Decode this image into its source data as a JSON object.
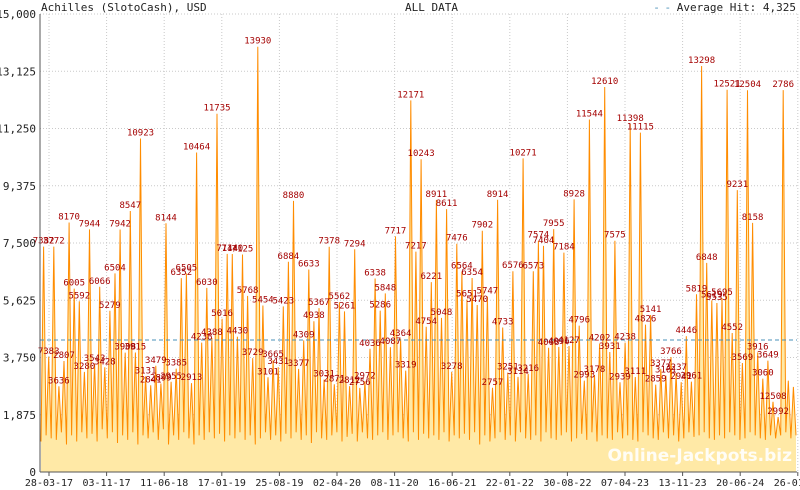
{
  "header": {
    "title": "Achilles (SlotoCash), USD",
    "range": "ALL DATA",
    "avg_label": "Average Hit: 4,325"
  },
  "watermark": "Online-Jackpots.biz",
  "colors": {
    "fill": "#ffe9a6",
    "line": "#ff8c00",
    "peak_label": "#a40000",
    "avg_line": "#4a90b8",
    "grid": "#c9c9c9"
  },
  "chart_data": {
    "type": "area",
    "title": "Achilles (SlotoCash), USD",
    "xlabel": "",
    "ylabel": "",
    "ylim": [
      0,
      15000
    ],
    "y_ticks": [
      "0",
      "1,875",
      "3,750",
      "5,625",
      "7,500",
      "9,375",
      "11,250",
      "13,125",
      "15,000"
    ],
    "x_ticks": [
      "28-03-17",
      "03-11-17",
      "11-06-18",
      "17-01-19",
      "25-08-19",
      "02-04-20",
      "08-11-20",
      "16-06-21",
      "22-01-22",
      "30-08-22",
      "07-04-23",
      "13-11-23",
      "20-06-24",
      "26-01-25"
    ],
    "grid": true,
    "average_hit": 4325,
    "series": [
      {
        "values": [
          1000,
          7382,
          1200,
          3772,
          1100,
          7383,
          1050,
          2807,
          1300,
          3636,
          900,
          8170,
          1200,
          6005,
          1000,
          5592,
          1300,
          3280,
          1100,
          7944,
          1250,
          3543,
          1000,
          6066,
          1400,
          3428,
          1100,
          5279,
          1300,
          6504,
          950,
          7942,
          1200,
          3908,
          1050,
          8547,
          1300,
          3915,
          900,
          10923,
          1200,
          3131,
          1100,
          2841,
          1300,
          3479,
          1050,
          2899,
          1400,
          8144,
          900,
          2955,
          1200,
          3385,
          1050,
          6352,
          1300,
          6505,
          1100,
          2913,
          900,
          10464,
          1200,
          4238,
          1050,
          6030,
          1300,
          4388,
          1100,
          11735,
          1250,
          5016,
          1000,
          7144,
          1200,
          7140,
          1100,
          4430,
          1300,
          7125,
          1050,
          5768,
          1200,
          3729,
          900,
          13930,
          1100,
          5454,
          1300,
          3101,
          1050,
          3665,
          1200,
          3431,
          1000,
          5423,
          1250,
          6884,
          1100,
          8880,
          1300,
          3377,
          1050,
          4309,
          1200,
          6633,
          950,
          4938,
          1300,
          5367,
          1100,
          3031,
          1050,
          7378,
          1200,
          2871,
          1300,
          5562,
          1000,
          5261,
          1150,
          2812,
          1250,
          7294,
          1000,
          2756,
          1300,
          2972,
          1100,
          4036,
          1050,
          6338,
          1200,
          5286,
          1300,
          5848,
          1050,
          4087,
          1200,
          7717,
          1300,
          4364,
          1100,
          3319,
          1000,
          12171,
          1300,
          7217,
          1050,
          10243,
          1250,
          4754,
          1100,
          6221,
          1200,
          8911,
          1050,
          5048,
          1300,
          8611,
          1000,
          3278,
          1200,
          7476,
          1100,
          6564,
          1250,
          5651,
          1050,
          6354,
          1300,
          5470,
          900,
          7902,
          1200,
          5747,
          1000,
          2757,
          1100,
          8914,
          1300,
          4733,
          1050,
          3251,
          1200,
          6576,
          1000,
          3114,
          1300,
          10271,
          1100,
          3216,
          1050,
          6573,
          1200,
          7574,
          1000,
          7404,
          1300,
          4068,
          1100,
          7955,
          1050,
          4096,
          1200,
          7184,
          1300,
          4127,
          1000,
          8928,
          1100,
          4796,
          1250,
          2993,
          1050,
          11544,
          1300,
          3178,
          1000,
          4202,
          1200,
          12610,
          1100,
          3931,
          1050,
          7575,
          1300,
          2939,
          1100,
          4238,
          1200,
          11398,
          1050,
          3111,
          1000,
          11115,
          1300,
          4826,
          1200,
          5141,
          1100,
          2859,
          1050,
          3377,
          1300,
          3161,
          1100,
          3766,
          1200,
          3237,
          1000,
          2941,
          1100,
          4446,
          1300,
          2961,
          1150,
          5819,
          1200,
          13298,
          1300,
          6848,
          1100,
          5619,
          1050,
          5535,
          1200,
          5695,
          1100,
          12521,
          1300,
          4552,
          1200,
          9231,
          1050,
          3569,
          1100,
          12504,
          1300,
          8158,
          1200,
          3916,
          1100,
          3060,
          1050,
          3649,
          1200,
          2300,
          1100,
          1800,
          1200,
          12508,
          1300,
          2992,
          1100,
          2786,
          1200
        ]
      }
    ],
    "peak_labels": [
      "7382",
      "7383",
      "3772",
      "3636",
      "2807",
      "8170",
      "6005",
      "5592",
      "3280",
      "7944",
      "3543",
      "6066",
      "3428",
      "5279",
      "6504",
      "7942",
      "3908",
      "8547",
      "3915",
      "10923",
      "3131",
      "2841",
      "3479",
      "2899",
      "8144",
      "2955",
      "3385",
      "6352",
      "6505",
      "2913",
      "10464",
      "4238",
      "6030",
      "4388",
      "11735",
      "5016",
      "7144",
      "7140",
      "4430",
      "7125",
      "5768",
      "3729",
      "13930",
      "5454",
      "3101",
      "3665",
      "3431",
      "5423",
      "6884",
      "8880",
      "3377",
      "4309",
      "6633",
      "4938",
      "5367",
      "3031",
      "7378",
      "2871",
      "5562",
      "5261",
      "2812",
      "7294",
      "2756",
      "2972",
      "4036",
      "6338",
      "5286",
      "5848",
      "4087",
      "7717",
      "4364",
      "3319",
      "12171",
      "7217",
      "10243",
      "4754",
      "6221",
      "8911",
      "5048",
      "8611",
      "3278",
      "7476",
      "6564",
      "5651",
      "6354",
      "5470",
      "7902",
      "5747",
      "2757",
      "8914",
      "4733",
      "3251",
      "6576",
      "3114",
      "10271",
      "3216",
      "6573",
      "7574",
      "7404",
      "4068",
      "7955",
      "4096",
      "7184",
      "4127",
      "8928",
      "4796",
      "2993",
      "11544",
      "3178",
      "4202",
      "12610",
      "3931",
      "7575",
      "2939",
      "4238",
      "11398",
      "3111",
      "11115",
      "4826",
      "5141",
      "2859",
      "3377",
      "3161",
      "3766",
      "3237",
      "2941",
      "4446",
      "2961",
      "5819",
      "13298",
      "6848",
      "5619",
      "5535",
      "5695",
      "12521",
      "4552",
      "9231",
      "3569",
      "12504",
      "8158",
      "3916",
      "3060",
      "3649",
      "12508",
      "2992",
      "2786"
    ]
  }
}
